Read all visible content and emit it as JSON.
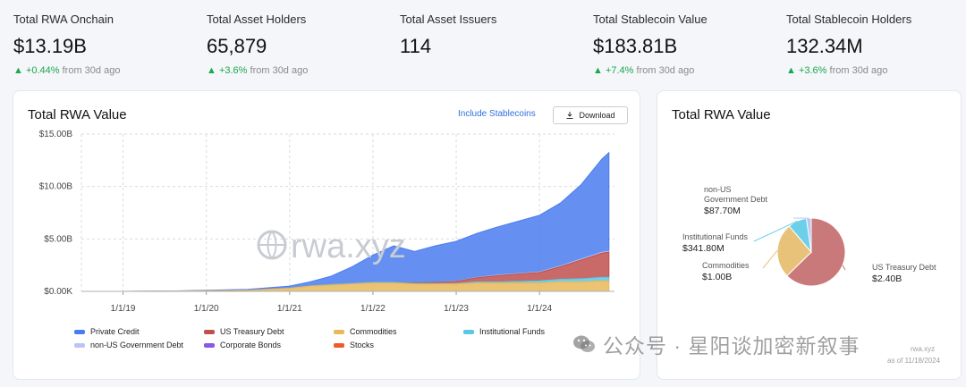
{
  "stats": [
    {
      "label": "Total RWA Onchain",
      "value": "$13.19B",
      "change": "▲ +0.44%",
      "period": "from 30d ago"
    },
    {
      "label": "Total Asset Holders",
      "value": "65,879",
      "change": "▲ +3.6%",
      "period": "from 30d ago"
    },
    {
      "label": "Total Asset Issuers",
      "value": "114",
      "change": "",
      "period": ""
    },
    {
      "label": "Total Stablecoin Value",
      "value": "$183.81B",
      "change": "▲ +7.4%",
      "period": "from 30d ago"
    },
    {
      "label": "Total Stablecoin Holders",
      "value": "132.34M",
      "change": "▲ +3.6%",
      "period": "from 30d ago"
    }
  ],
  "main_card": {
    "title": "Total RWA Value",
    "include_stablecoins": "Include Stablecoins",
    "download": "Download",
    "watermark": "rwa.xyz"
  },
  "side_card": {
    "title": "Total RWA Value",
    "watermark": "rwa.xyz",
    "as_of": "as of 11/18/2024"
  },
  "legend": [
    {
      "name": "Private Credit",
      "color": "#4a7cf0"
    },
    {
      "name": "US Treasury Debt",
      "color": "#c0504d"
    },
    {
      "name": "Commodities",
      "color": "#e9b85a"
    },
    {
      "name": "Institutional Funds",
      "color": "#5bc8e6"
    },
    {
      "name": "non-US Government Debt",
      "color": "#b9c6f2"
    },
    {
      "name": "Corporate Bonds",
      "color": "#8a57e6"
    },
    {
      "name": "Stocks",
      "color": "#f15a2b"
    }
  ],
  "footer_watermark": "公众号 · 星阳谈加密新叙事",
  "chart_data": [
    {
      "type": "area",
      "title": "Total RWA Value",
      "x_ticks": [
        "1/1/19",
        "1/1/20",
        "1/1/21",
        "1/1/22",
        "1/1/23",
        "1/1/24"
      ],
      "y_ticks": [
        "$0.00K",
        "$5.00B",
        "$10.00B",
        "$15.00B"
      ],
      "ylim": [
        0,
        15
      ],
      "y_unit": "billion USD",
      "x": [
        "2018-07",
        "2019-01",
        "2019-07",
        "2020-01",
        "2020-07",
        "2021-01",
        "2021-04",
        "2021-07",
        "2021-10",
        "2022-01",
        "2022-04",
        "2022-07",
        "2022-10",
        "2023-01",
        "2023-04",
        "2023-07",
        "2023-10",
        "2024-01",
        "2024-04",
        "2024-07",
        "2024-10",
        "2024-11"
      ],
      "series": [
        {
          "name": "Commodities",
          "values": [
            0.0,
            0.0,
            0.02,
            0.05,
            0.1,
            0.3,
            0.5,
            0.6,
            0.7,
            0.8,
            0.8,
            0.7,
            0.7,
            0.7,
            0.8,
            0.8,
            0.8,
            0.8,
            0.9,
            0.9,
            1.0,
            1.0
          ]
        },
        {
          "name": "Institutional Funds",
          "values": [
            0.0,
            0.0,
            0.0,
            0.0,
            0.0,
            0.0,
            0.02,
            0.05,
            0.05,
            0.05,
            0.05,
            0.05,
            0.05,
            0.05,
            0.1,
            0.1,
            0.15,
            0.2,
            0.25,
            0.3,
            0.34,
            0.34
          ]
        },
        {
          "name": "US Treasury Debt",
          "values": [
            0.0,
            0.0,
            0.0,
            0.0,
            0.0,
            0.0,
            0.0,
            0.0,
            0.0,
            0.0,
            0.0,
            0.05,
            0.1,
            0.2,
            0.4,
            0.6,
            0.7,
            0.8,
            1.2,
            1.8,
            2.3,
            2.4
          ]
        },
        {
          "name": "non-US Government Debt",
          "values": [
            0.0,
            0.0,
            0.0,
            0.0,
            0.0,
            0.0,
            0.0,
            0.0,
            0.0,
            0.0,
            0.0,
            0.0,
            0.0,
            0.02,
            0.03,
            0.05,
            0.05,
            0.06,
            0.07,
            0.08,
            0.088,
            0.088
          ]
        },
        {
          "name": "Private Credit",
          "values": [
            0.0,
            0.0,
            0.0,
            0.05,
            0.1,
            0.2,
            0.4,
            0.8,
            1.6,
            2.6,
            3.5,
            3.0,
            3.5,
            3.8,
            4.2,
            4.6,
            5.0,
            5.4,
            6.0,
            7.1,
            8.9,
            9.4
          ]
        }
      ]
    },
    {
      "type": "pie",
      "title": "Total RWA Value",
      "slices": [
        {
          "name": "US Treasury Debt",
          "label": "US Treasury Debt",
          "value_label": "$2.40B",
          "value": 2.4,
          "color": "#c97979"
        },
        {
          "name": "Commodities",
          "label": "Commodities",
          "value_label": "$1.00B",
          "value": 1.0,
          "color": "#e9c27a"
        },
        {
          "name": "Institutional Funds",
          "label": "Institutional Funds",
          "value_label": "$341.80M",
          "value": 0.3418,
          "color": "#6cd0ea"
        },
        {
          "name": "non-US Government Debt",
          "label": "non-US Government Debt",
          "value_label": "$87.70M",
          "value": 0.0877,
          "color": "#b9c6f2"
        }
      ]
    }
  ]
}
